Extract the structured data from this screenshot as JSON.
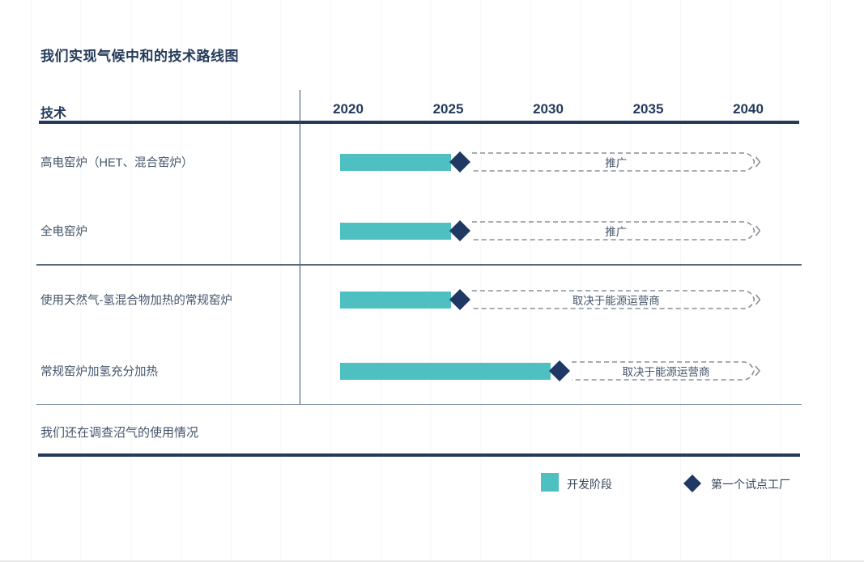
{
  "title": "我们实现气候中和的技术路线图",
  "header": {
    "tech_label": "技术"
  },
  "footnote": "我们还在调查沼气的使用情况",
  "legend": {
    "development": "开发阶段",
    "pilot": "第一个试点工厂"
  },
  "colors": {
    "accent_teal": "#4fc0c2",
    "navy_text_rules": "#243a5a",
    "diamond_navy": "#1f3864",
    "dashed_outline_gray": "#8a9099",
    "secondary_text": "#44546a"
  },
  "chart_data": {
    "type": "bar",
    "subtype": "gantt-roadmap",
    "title": "我们实现气候中和的技术路线图",
    "x_axis": {
      "ticks": [
        2020,
        2025,
        2030,
        2035,
        2040
      ],
      "tick_labels": [
        "2020",
        "2025",
        "2030",
        "2035",
        "2040"
      ],
      "range": [
        2019.5,
        2040.5
      ]
    },
    "legend": [
      {
        "marker": "teal-bar",
        "label": "开发阶段"
      },
      {
        "marker": "navy-diamond",
        "label": "第一个试点工厂"
      }
    ],
    "rows": [
      {
        "technology": "高电窑炉（HET、混合窑炉）",
        "development": [
          2020,
          2025
        ],
        "first_pilot_plant": 2025,
        "outlook": {
          "start": 2026,
          "end": 2040,
          "label": "推广"
        }
      },
      {
        "technology": "全电窑炉",
        "development": [
          2020,
          2025
        ],
        "first_pilot_plant": 2025,
        "outlook": {
          "start": 2026,
          "end": 2040,
          "label": "推广"
        }
      },
      {
        "technology": "使用天然气-氢混合物加热的常规窑炉",
        "development": [
          2020,
          2025
        ],
        "first_pilot_plant": 2025,
        "outlook": {
          "start": 2026,
          "end": 2040,
          "label": "取决于能源运营商"
        }
      },
      {
        "technology": "常规窑炉加氢充分加热",
        "development": [
          2020,
          2030
        ],
        "first_pilot_plant": 2030,
        "outlook": {
          "start": 2031,
          "end": 2040,
          "label": "取决于能源运营商"
        }
      }
    ],
    "groups": [
      {
        "rows": [
          0,
          1
        ]
      },
      {
        "rows": [
          2,
          3
        ]
      }
    ]
  }
}
